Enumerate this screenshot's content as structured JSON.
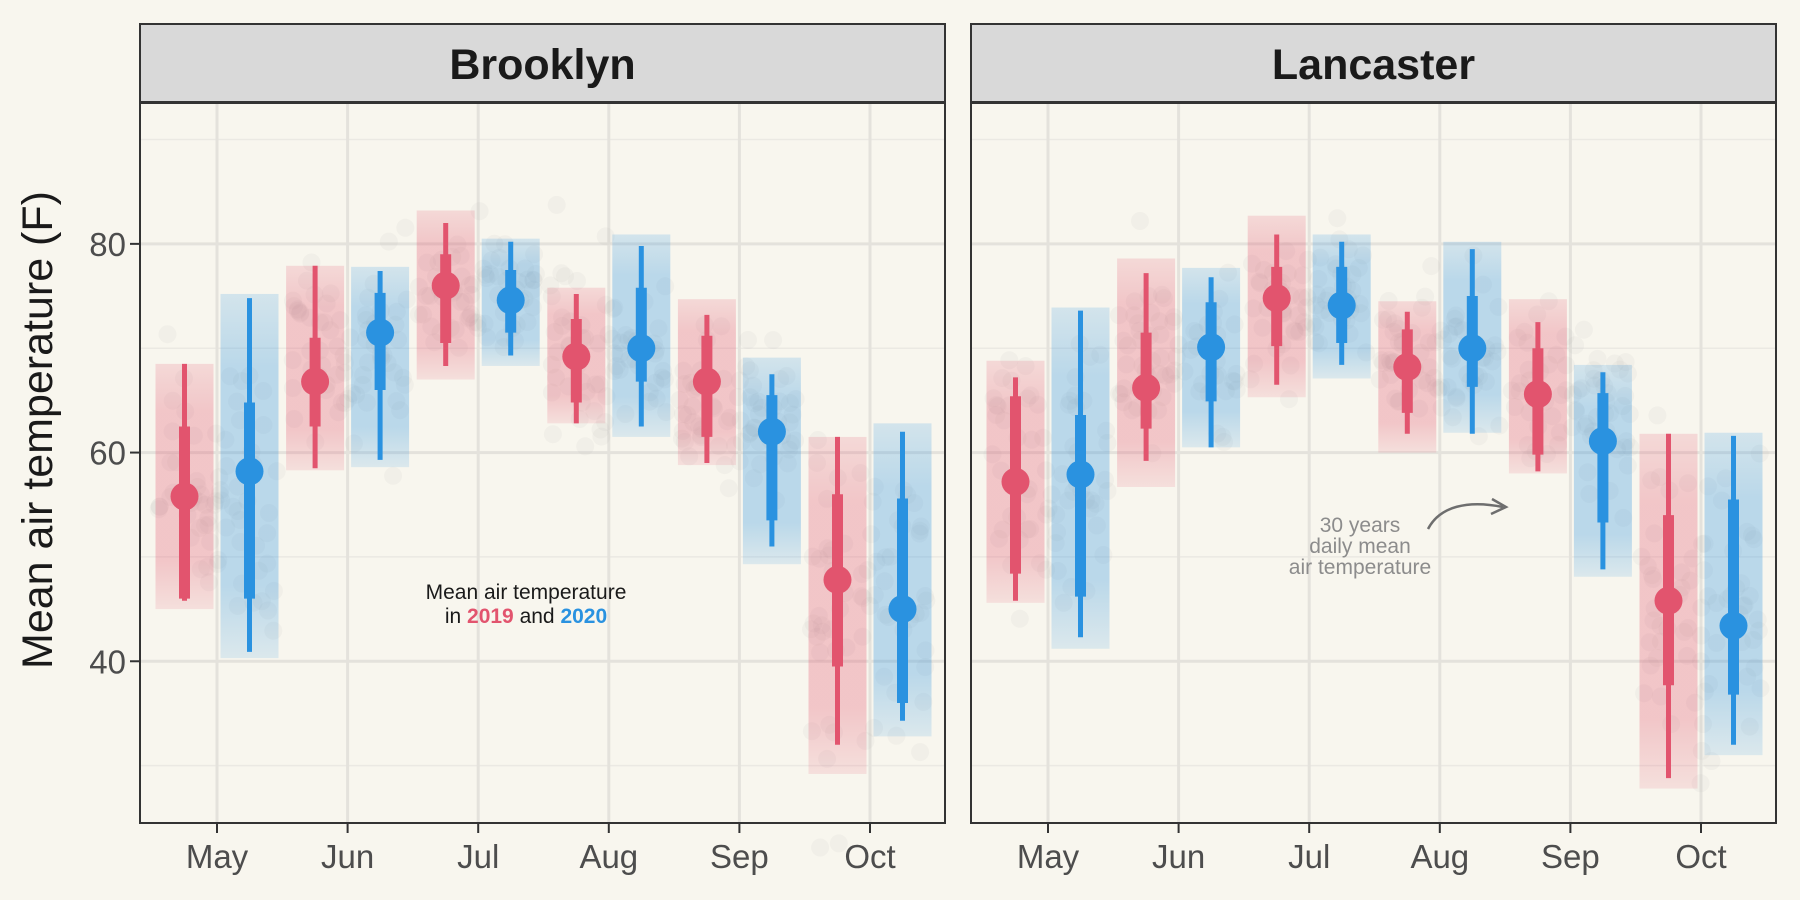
{
  "chart_data": {
    "type": "interval",
    "ylabel": "Mean air temperature (F)",
    "yticks": [
      40,
      60,
      80
    ],
    "ylim": [
      24.5,
      93.5
    ],
    "months": [
      "May",
      "Jun",
      "Jul",
      "Aug",
      "Sep",
      "Oct"
    ],
    "grid": true,
    "colors": {
      "2019": "#e2546e",
      "2020": "#2a92e0",
      "background": "#f8f6ee",
      "strip": "#d9d9d9",
      "points": "#a0a0a0"
    },
    "legend_text": {
      "line1": "Mean air temperature",
      "prefix": "in",
      "year1": "2019",
      "connector": "and",
      "year2": "2020"
    },
    "annotation": {
      "line1": "30 years",
      "line2": "daily mean",
      "line3": "air temperature"
    },
    "panels": [
      {
        "title": "Brooklyn",
        "series": [
          {
            "year": "2019",
            "mean": [
              55.8,
              66.8,
              76.0,
              69.2,
              66.8,
              47.8
            ],
            "inner": [
              [
                46,
                62.5
              ],
              [
                62.5,
                71
              ],
              [
                70.5,
                79
              ],
              [
                64.8,
                72.8
              ],
              [
                61.5,
                71.2
              ],
              [
                39.5,
                56
              ]
            ],
            "outer": [
              [
                45.8,
                68.5
              ],
              [
                58.5,
                77.9
              ],
              [
                68.3,
                82
              ],
              [
                62.8,
                75.2
              ],
              [
                59,
                73.2
              ],
              [
                32,
                61.5
              ]
            ],
            "band": [
              [
                45,
                68.5
              ],
              [
                58.3,
                77.9
              ],
              [
                67,
                83.2
              ],
              [
                62.8,
                75.8
              ],
              [
                58.8,
                74.7
              ],
              [
                29.2,
                61.5
              ]
            ]
          },
          {
            "year": "2020",
            "mean": [
              58.2,
              71.5,
              74.6,
              70.0,
              62.0,
              45.0
            ],
            "inner": [
              [
                46,
                64.8
              ],
              [
                66,
                75.3
              ],
              [
                71.5,
                77.5
              ],
              [
                66.8,
                75.8
              ],
              [
                53.5,
                65.5
              ],
              [
                36,
                55.6
              ]
            ],
            "outer": [
              [
                40.9,
                74.8
              ],
              [
                59.3,
                77.4
              ],
              [
                69.3,
                80.2
              ],
              [
                62.5,
                79.8
              ],
              [
                51,
                67.5
              ],
              [
                34.3,
                62
              ]
            ],
            "band": [
              [
                40.3,
                75.2
              ],
              [
                58.6,
                77.8
              ],
              [
                68.3,
                80.5
              ],
              [
                61.5,
                80.9
              ],
              [
                49.3,
                69.1
              ],
              [
                32.8,
                62.8
              ]
            ]
          }
        ]
      },
      {
        "title": "Lancaster",
        "series": [
          {
            "year": "2019",
            "mean": [
              57.2,
              66.2,
              74.8,
              68.2,
              65.6,
              45.8
            ],
            "inner": [
              [
                48.4,
                65.4
              ],
              [
                62.3,
                71.5
              ],
              [
                70.2,
                77.8
              ],
              [
                63.8,
                71.8
              ],
              [
                59.8,
                70
              ],
              [
                37.7,
                54
              ]
            ],
            "outer": [
              [
                45.8,
                67.2
              ],
              [
                59.2,
                77.2
              ],
              [
                66.5,
                80.9
              ],
              [
                61.8,
                73.5
              ],
              [
                58.2,
                72.5
              ],
              [
                28.8,
                61.8
              ]
            ],
            "band": [
              [
                45.6,
                68.8
              ],
              [
                56.7,
                78.6
              ],
              [
                65.3,
                82.7
              ],
              [
                60,
                74.5
              ],
              [
                58,
                74.7
              ],
              [
                27.8,
                61.8
              ]
            ]
          },
          {
            "year": "2020",
            "mean": [
              57.9,
              70.1,
              74.1,
              70.0,
              61.1,
              43.4
            ],
            "inner": [
              [
                46.2,
                63.6
              ],
              [
                64.9,
                74.4
              ],
              [
                70.5,
                77.8
              ],
              [
                66.3,
                75
              ],
              [
                53.3,
                65.7
              ],
              [
                36.8,
                55.5
              ]
            ],
            "outer": [
              [
                42.3,
                73.6
              ],
              [
                60.5,
                76.8
              ],
              [
                68.4,
                80.2
              ],
              [
                61.8,
                79.5
              ],
              [
                48.8,
                67.7
              ],
              [
                32,
                61.6
              ]
            ],
            "band": [
              [
                41.2,
                73.9
              ],
              [
                60.5,
                77.7
              ],
              [
                67.1,
                80.9
              ],
              [
                61.9,
                80.2
              ],
              [
                48.1,
                68.4
              ],
              [
                31,
                61.9
              ]
            ]
          }
        ]
      }
    ]
  }
}
